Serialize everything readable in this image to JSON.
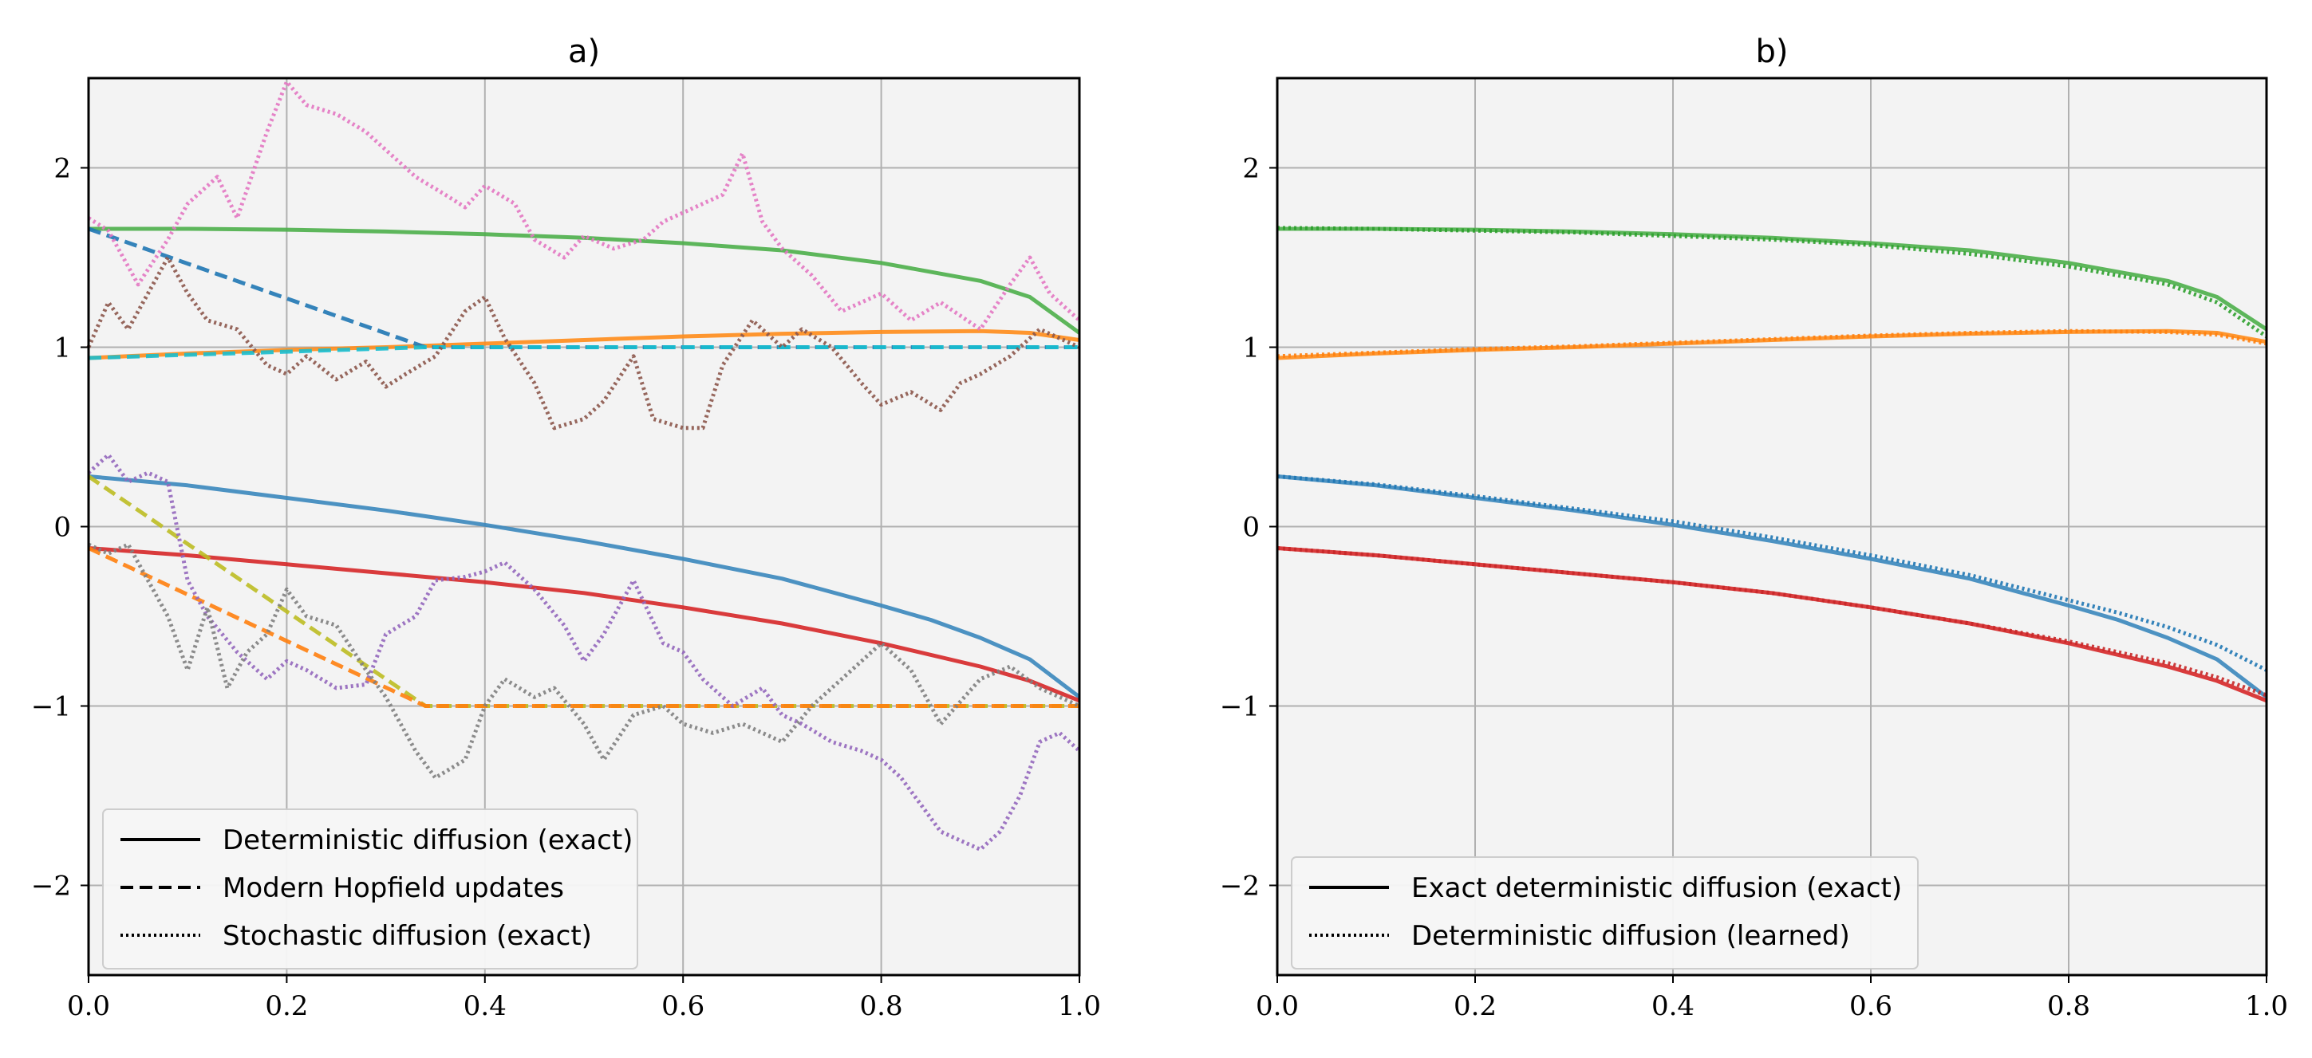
{
  "chart_data": [
    {
      "type": "line",
      "title": "a)",
      "xlabel": "",
      "ylabel": "",
      "xlim": [
        0.0,
        1.0
      ],
      "ylim": [
        -2.5,
        2.5
      ],
      "xticks": [
        0.0,
        0.2,
        0.4,
        0.6,
        0.8,
        1.0
      ],
      "xtick_labels": [
        "0.0",
        "0.2",
        "0.4",
        "0.6",
        "0.8",
        "1.0"
      ],
      "yticks": [
        2,
        1,
        0,
        -1,
        -2
      ],
      "ytick_labels": [
        "2",
        "1",
        "0",
        "−1",
        "−2"
      ],
      "grid": true,
      "legend_position": "lower-left",
      "legend": [
        {
          "label": "Deterministic diffusion (exact)",
          "style": "solid"
        },
        {
          "label": "Modern Hopfield updates",
          "style": "dashed"
        },
        {
          "label": "Stochastic diffusion (exact)",
          "style": "dotted"
        }
      ],
      "series": [
        {
          "name": "deterministic-green",
          "style": "solid",
          "color": "#4daf4a",
          "x": [
            0.0,
            0.1,
            0.2,
            0.3,
            0.4,
            0.5,
            0.6,
            0.7,
            0.8,
            0.9,
            0.95,
            1.0
          ],
          "y": [
            1.66,
            1.66,
            1.655,
            1.645,
            1.63,
            1.61,
            1.58,
            1.54,
            1.47,
            1.37,
            1.28,
            1.08
          ]
        },
        {
          "name": "deterministic-orange",
          "style": "solid",
          "color": "#ff8c1a",
          "x": [
            0.0,
            0.1,
            0.2,
            0.3,
            0.4,
            0.5,
            0.6,
            0.7,
            0.8,
            0.9,
            0.95,
            1.0
          ],
          "y": [
            0.94,
            0.965,
            0.985,
            1.0,
            1.02,
            1.04,
            1.06,
            1.075,
            1.085,
            1.09,
            1.08,
            1.04
          ]
        },
        {
          "name": "deterministic-blue",
          "style": "solid",
          "color": "#3a87bd",
          "x": [
            0.0,
            0.1,
            0.2,
            0.3,
            0.4,
            0.5,
            0.6,
            0.7,
            0.8,
            0.85,
            0.9,
            0.95,
            1.0
          ],
          "y": [
            0.28,
            0.23,
            0.16,
            0.09,
            0.01,
            -0.08,
            -0.18,
            -0.29,
            -0.44,
            -0.52,
            -0.62,
            -0.74,
            -0.95
          ]
        },
        {
          "name": "deterministic-red",
          "style": "solid",
          "color": "#d62728",
          "x": [
            0.0,
            0.1,
            0.2,
            0.3,
            0.4,
            0.5,
            0.6,
            0.7,
            0.8,
            0.9,
            0.95,
            1.0
          ],
          "y": [
            -0.12,
            -0.16,
            -0.21,
            -0.26,
            -0.31,
            -0.37,
            -0.45,
            -0.54,
            -0.65,
            -0.78,
            -0.86,
            -0.97
          ]
        },
        {
          "name": "hopfield-blue",
          "style": "dashed",
          "color": "#1f77b4",
          "x": [
            0.0,
            0.34,
            1.0
          ],
          "y": [
            1.66,
            1.0,
            1.0
          ]
        },
        {
          "name": "hopfield-cyan",
          "style": "dashed",
          "color": "#17becf",
          "x": [
            0.0,
            0.34,
            1.0
          ],
          "y": [
            0.94,
            1.0,
            1.0
          ]
        },
        {
          "name": "hopfield-olive",
          "style": "dashed",
          "color": "#bcbd22",
          "x": [
            0.0,
            0.34,
            1.0
          ],
          "y": [
            0.28,
            -1.0,
            -1.0
          ]
        },
        {
          "name": "hopfield-orange",
          "style": "dashed",
          "color": "#ff7f0e",
          "x": [
            0.0,
            0.34,
            1.0
          ],
          "y": [
            -0.12,
            -1.0,
            -1.0
          ]
        },
        {
          "name": "stochastic-pink",
          "style": "dotted",
          "color": "#e377c2",
          "x": [
            0.0,
            0.02,
            0.05,
            0.08,
            0.1,
            0.13,
            0.15,
            0.18,
            0.2,
            0.22,
            0.25,
            0.28,
            0.3,
            0.33,
            0.36,
            0.38,
            0.4,
            0.43,
            0.45,
            0.48,
            0.5,
            0.53,
            0.56,
            0.58,
            0.6,
            0.62,
            0.64,
            0.66,
            0.68,
            0.7,
            0.73,
            0.76,
            0.8,
            0.83,
            0.86,
            0.9,
            0.93,
            0.95,
            0.97,
            1.0
          ],
          "y": [
            1.72,
            1.65,
            1.35,
            1.6,
            1.8,
            1.95,
            1.72,
            2.2,
            2.48,
            2.35,
            2.3,
            2.2,
            2.1,
            1.95,
            1.85,
            1.78,
            1.9,
            1.8,
            1.6,
            1.5,
            1.62,
            1.55,
            1.6,
            1.7,
            1.75,
            1.8,
            1.85,
            2.08,
            1.7,
            1.55,
            1.4,
            1.2,
            1.3,
            1.15,
            1.25,
            1.1,
            1.35,
            1.5,
            1.3,
            1.15
          ]
        },
        {
          "name": "stochastic-brown",
          "style": "dotted",
          "color": "#8c564b",
          "x": [
            0.0,
            0.02,
            0.04,
            0.06,
            0.08,
            0.1,
            0.12,
            0.15,
            0.18,
            0.2,
            0.22,
            0.25,
            0.28,
            0.3,
            0.32,
            0.35,
            0.38,
            0.4,
            0.42,
            0.45,
            0.47,
            0.5,
            0.52,
            0.55,
            0.57,
            0.6,
            0.62,
            0.64,
            0.67,
            0.7,
            0.72,
            0.75,
            0.78,
            0.8,
            0.83,
            0.86,
            0.88,
            0.9,
            0.93,
            0.96,
            1.0
          ],
          "y": [
            1.0,
            1.25,
            1.1,
            1.3,
            1.5,
            1.3,
            1.15,
            1.1,
            0.9,
            0.85,
            0.95,
            0.82,
            0.92,
            0.78,
            0.85,
            0.95,
            1.2,
            1.28,
            1.05,
            0.8,
            0.55,
            0.6,
            0.7,
            0.95,
            0.6,
            0.55,
            0.55,
            0.9,
            1.15,
            1.0,
            1.1,
            1.0,
            0.8,
            0.68,
            0.75,
            0.65,
            0.8,
            0.85,
            0.95,
            1.1,
            1.0
          ]
        },
        {
          "name": "stochastic-purple",
          "style": "dotted",
          "color": "#9467bd",
          "x": [
            0.0,
            0.02,
            0.04,
            0.06,
            0.08,
            0.1,
            0.12,
            0.15,
            0.18,
            0.2,
            0.22,
            0.25,
            0.28,
            0.3,
            0.33,
            0.35,
            0.38,
            0.4,
            0.42,
            0.45,
            0.48,
            0.5,
            0.52,
            0.55,
            0.58,
            0.6,
            0.62,
            0.65,
            0.68,
            0.7,
            0.72,
            0.75,
            0.78,
            0.8,
            0.82,
            0.84,
            0.86,
            0.88,
            0.9,
            0.92,
            0.94,
            0.96,
            0.98,
            1.0
          ],
          "y": [
            0.3,
            0.4,
            0.25,
            0.3,
            0.25,
            -0.3,
            -0.5,
            -0.7,
            -0.85,
            -0.75,
            -0.8,
            -0.9,
            -0.88,
            -0.6,
            -0.5,
            -0.3,
            -0.28,
            -0.25,
            -0.2,
            -0.35,
            -0.55,
            -0.75,
            -0.6,
            -0.3,
            -0.65,
            -0.7,
            -0.85,
            -1.0,
            -0.9,
            -1.05,
            -1.1,
            -1.2,
            -1.25,
            -1.3,
            -1.4,
            -1.55,
            -1.7,
            -1.75,
            -1.8,
            -1.7,
            -1.5,
            -1.2,
            -1.15,
            -1.25
          ]
        },
        {
          "name": "stochastic-gray",
          "style": "dotted",
          "color": "#7f7f7f",
          "x": [
            0.0,
            0.02,
            0.04,
            0.06,
            0.08,
            0.1,
            0.12,
            0.14,
            0.16,
            0.18,
            0.2,
            0.22,
            0.25,
            0.28,
            0.3,
            0.33,
            0.35,
            0.38,
            0.4,
            0.42,
            0.45,
            0.47,
            0.5,
            0.52,
            0.55,
            0.58,
            0.6,
            0.63,
            0.66,
            0.7,
            0.73,
            0.76,
            0.8,
            0.83,
            0.86,
            0.9,
            0.93,
            0.96,
            1.0
          ],
          "y": [
            -0.1,
            -0.15,
            -0.1,
            -0.3,
            -0.5,
            -0.8,
            -0.45,
            -0.9,
            -0.7,
            -0.6,
            -0.35,
            -0.5,
            -0.55,
            -0.8,
            -0.95,
            -1.25,
            -1.4,
            -1.3,
            -1.0,
            -0.85,
            -0.95,
            -0.9,
            -1.1,
            -1.3,
            -1.05,
            -1.0,
            -1.1,
            -1.15,
            -1.1,
            -1.2,
            -1.0,
            -0.85,
            -0.65,
            -0.8,
            -1.1,
            -0.85,
            -0.78,
            -0.9,
            -1.0
          ]
        }
      ]
    },
    {
      "type": "line",
      "title": "b)",
      "xlabel": "",
      "ylabel": "",
      "xlim": [
        0.0,
        1.0
      ],
      "ylim": [
        -2.5,
        2.5
      ],
      "xticks": [
        0.0,
        0.2,
        0.4,
        0.6,
        0.8,
        1.0
      ],
      "xtick_labels": [
        "0.0",
        "0.2",
        "0.4",
        "0.6",
        "0.8",
        "1.0"
      ],
      "yticks": [
        2,
        1,
        0,
        -1,
        -2
      ],
      "ytick_labels": [
        "2",
        "1",
        "0",
        "−1",
        "−2"
      ],
      "grid": true,
      "legend_position": "lower-left",
      "legend": [
        {
          "label": "Exact deterministic diffusion (exact)",
          "style": "solid"
        },
        {
          "label": "Deterministic diffusion (learned)",
          "style": "dotted"
        }
      ],
      "series": [
        {
          "name": "exact-green",
          "style": "solid",
          "color": "#4daf4a",
          "x": [
            0.0,
            0.1,
            0.2,
            0.3,
            0.4,
            0.5,
            0.6,
            0.7,
            0.8,
            0.9,
            0.95,
            1.0
          ],
          "y": [
            1.66,
            1.66,
            1.655,
            1.645,
            1.63,
            1.61,
            1.58,
            1.54,
            1.47,
            1.37,
            1.28,
            1.1
          ]
        },
        {
          "name": "learned-green",
          "style": "dotted",
          "color": "#2ca02c",
          "x": [
            0.0,
            0.1,
            0.2,
            0.3,
            0.4,
            0.5,
            0.6,
            0.7,
            0.8,
            0.9,
            0.95,
            1.0
          ],
          "y": [
            1.665,
            1.66,
            1.65,
            1.64,
            1.62,
            1.6,
            1.57,
            1.52,
            1.45,
            1.35,
            1.25,
            1.06
          ]
        },
        {
          "name": "exact-orange",
          "style": "solid",
          "color": "#ff8c1a",
          "x": [
            0.0,
            0.1,
            0.2,
            0.3,
            0.4,
            0.5,
            0.6,
            0.7,
            0.8,
            0.9,
            0.95,
            1.0
          ],
          "y": [
            0.94,
            0.965,
            0.985,
            1.0,
            1.02,
            1.04,
            1.06,
            1.075,
            1.085,
            1.09,
            1.08,
            1.03
          ]
        },
        {
          "name": "learned-orange",
          "style": "dotted",
          "color": "#ff7f0e",
          "x": [
            0.0,
            0.1,
            0.2,
            0.3,
            0.4,
            0.5,
            0.6,
            0.7,
            0.8,
            0.9,
            0.95,
            1.0
          ],
          "y": [
            0.95,
            0.97,
            0.99,
            1.005,
            1.025,
            1.045,
            1.065,
            1.08,
            1.09,
            1.085,
            1.07,
            1.02
          ]
        },
        {
          "name": "exact-blue",
          "style": "solid",
          "color": "#3a87bd",
          "x": [
            0.0,
            0.1,
            0.2,
            0.3,
            0.4,
            0.5,
            0.6,
            0.7,
            0.8,
            0.85,
            0.9,
            0.95,
            1.0
          ],
          "y": [
            0.28,
            0.23,
            0.16,
            0.09,
            0.01,
            -0.08,
            -0.18,
            -0.29,
            -0.44,
            -0.52,
            -0.62,
            -0.74,
            -0.95
          ]
        },
        {
          "name": "learned-blue",
          "style": "dotted",
          "color": "#1f77b4",
          "x": [
            0.0,
            0.1,
            0.2,
            0.3,
            0.4,
            0.5,
            0.6,
            0.7,
            0.8,
            0.85,
            0.9,
            0.95,
            1.0
          ],
          "y": [
            0.28,
            0.235,
            0.17,
            0.1,
            0.03,
            -0.06,
            -0.16,
            -0.27,
            -0.41,
            -0.48,
            -0.56,
            -0.66,
            -0.8
          ]
        },
        {
          "name": "exact-red",
          "style": "solid",
          "color": "#d62728",
          "x": [
            0.0,
            0.1,
            0.2,
            0.3,
            0.4,
            0.5,
            0.6,
            0.7,
            0.8,
            0.9,
            0.95,
            1.0
          ],
          "y": [
            -0.12,
            -0.16,
            -0.21,
            -0.26,
            -0.31,
            -0.37,
            -0.45,
            -0.54,
            -0.65,
            -0.78,
            -0.86,
            -0.97
          ]
        },
        {
          "name": "learned-red",
          "style": "dotted",
          "color": "#c62828",
          "x": [
            0.0,
            0.1,
            0.2,
            0.3,
            0.4,
            0.5,
            0.6,
            0.7,
            0.8,
            0.9,
            0.95,
            1.0
          ],
          "y": [
            -0.12,
            -0.16,
            -0.21,
            -0.26,
            -0.31,
            -0.37,
            -0.45,
            -0.54,
            -0.64,
            -0.76,
            -0.84,
            -0.94
          ]
        }
      ]
    }
  ]
}
